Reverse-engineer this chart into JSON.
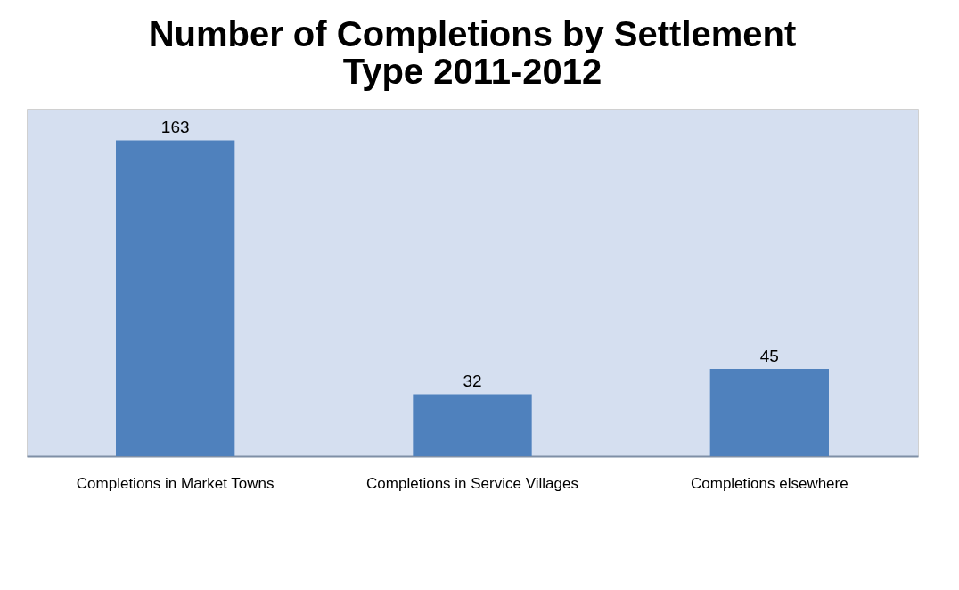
{
  "chart_data": {
    "type": "bar",
    "title": [
      "Number of Completions by Settlement",
      "Type 2011-2012"
    ],
    "categories": [
      "Completions in Market Towns",
      "Completions in Service Villages",
      "Completions elsewhere"
    ],
    "values": [
      163,
      32,
      45
    ],
    "color": "#4f81bd",
    "data_labels": true
  }
}
